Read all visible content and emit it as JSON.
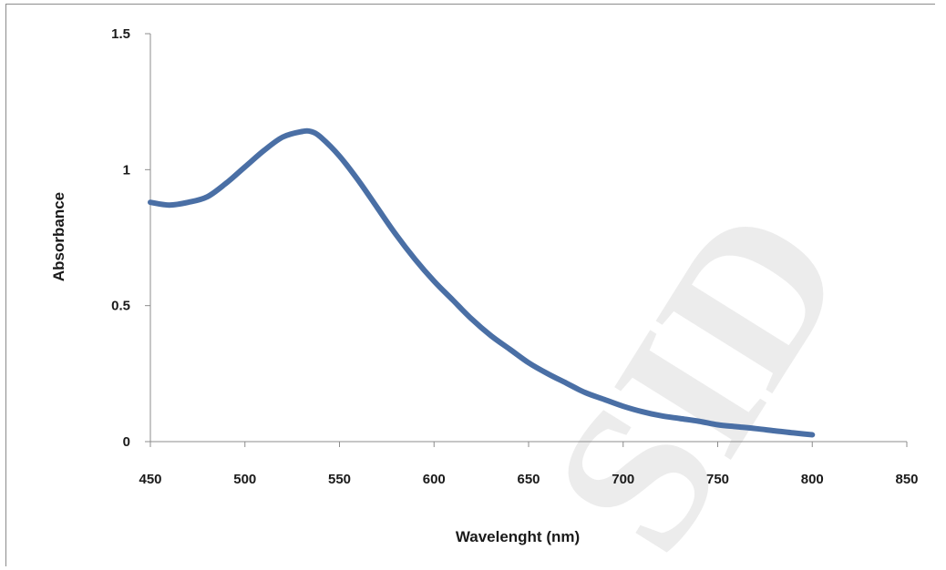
{
  "chart_data": {
    "type": "line",
    "title": "",
    "xlabel": "Wavelenght  (nm)",
    "ylabel": "Absorbance",
    "xlim": [
      450,
      850
    ],
    "ylim": [
      0,
      1.5
    ],
    "x_ticks": [
      450,
      500,
      550,
      600,
      650,
      700,
      750,
      800,
      850
    ],
    "x_tick_labels": [
      "450",
      "500",
      "550",
      "600",
      "650",
      "700",
      "750",
      "800",
      "850"
    ],
    "y_ticks": [
      0,
      0.5,
      1,
      1.5
    ],
    "y_tick_labels": [
      "0",
      "0.5",
      "1",
      "1.5"
    ],
    "grid": false,
    "legend": "none",
    "series": [
      {
        "color": "#4a6fa5",
        "x": [
          450,
          460,
          470,
          480,
          490,
          500,
          510,
          520,
          530,
          535,
          540,
          550,
          560,
          570,
          580,
          590,
          600,
          610,
          620,
          630,
          640,
          650,
          660,
          670,
          680,
          690,
          700,
          710,
          720,
          730,
          740,
          750,
          760,
          770,
          780,
          790,
          800
        ],
        "y": [
          0.88,
          0.87,
          0.88,
          0.9,
          0.95,
          1.01,
          1.07,
          1.12,
          1.14,
          1.14,
          1.12,
          1.05,
          0.96,
          0.86,
          0.76,
          0.67,
          0.59,
          0.52,
          0.45,
          0.39,
          0.34,
          0.29,
          0.25,
          0.215,
          0.18,
          0.155,
          0.13,
          0.11,
          0.095,
          0.085,
          0.075,
          0.062,
          0.055,
          0.048,
          0.04,
          0.032,
          0.025
        ]
      }
    ]
  },
  "watermark": {
    "text": "SID",
    "color": "#d9d9d9"
  }
}
